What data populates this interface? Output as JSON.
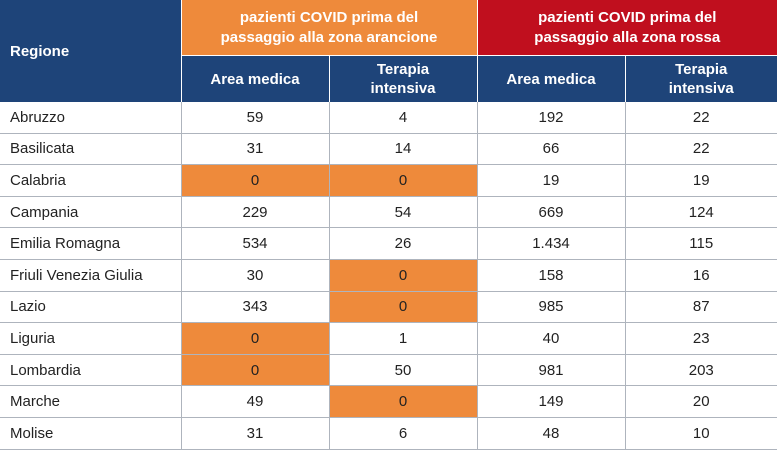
{
  "header": {
    "region": "Regione",
    "group_orange": [
      "pazienti COVID prima del",
      "passaggio alla zona arancione"
    ],
    "group_red": [
      "pazienti COVID prima del",
      "passaggio alla zona rossa"
    ],
    "sub": {
      "area_medica": "Area medica",
      "terapia": [
        "Terapia",
        "intensiva"
      ]
    }
  },
  "colors": {
    "header_blue": "#1e4479",
    "orange": "#ee8a3b",
    "red": "#c00f1e",
    "highlight": "#ee8a3b"
  },
  "rows": [
    {
      "region": "Abruzzo",
      "arancione_area": "59",
      "arancione_ti": "4",
      "rossa_area": "192",
      "rossa_ti": "22",
      "hl": []
    },
    {
      "region": "Basilicata",
      "arancione_area": "31",
      "arancione_ti": "14",
      "rossa_area": "66",
      "rossa_ti": "22",
      "hl": []
    },
    {
      "region": "Calabria",
      "arancione_area": "0",
      "arancione_ti": "0",
      "rossa_area": "19",
      "rossa_ti": "19",
      "hl": [
        "arancione_area",
        "arancione_ti"
      ]
    },
    {
      "region": "Campania",
      "arancione_area": "229",
      "arancione_ti": "54",
      "rossa_area": "669",
      "rossa_ti": "124",
      "hl": []
    },
    {
      "region": "Emilia Romagna",
      "arancione_area": "534",
      "arancione_ti": "26",
      "rossa_area": "1.434",
      "rossa_ti": "115",
      "hl": []
    },
    {
      "region": "Friuli Venezia Giulia",
      "arancione_area": "30",
      "arancione_ti": "0",
      "rossa_area": "158",
      "rossa_ti": "16",
      "hl": [
        "arancione_ti"
      ]
    },
    {
      "region": "Lazio",
      "arancione_area": "343",
      "arancione_ti": "0",
      "rossa_area": "985",
      "rossa_ti": "87",
      "hl": [
        "arancione_ti"
      ]
    },
    {
      "region": "Liguria",
      "arancione_area": "0",
      "arancione_ti": "1",
      "rossa_area": "40",
      "rossa_ti": "23",
      "hl": [
        "arancione_area"
      ]
    },
    {
      "region": "Lombardia",
      "arancione_area": "0",
      "arancione_ti": "50",
      "rossa_area": "981",
      "rossa_ti": "203",
      "hl": [
        "arancione_area"
      ]
    },
    {
      "region": "Marche",
      "arancione_area": "49",
      "arancione_ti": "0",
      "rossa_area": "149",
      "rossa_ti": "20",
      "hl": [
        "arancione_ti"
      ]
    },
    {
      "region": "Molise",
      "arancione_area": "31",
      "arancione_ti": "6",
      "rossa_area": "48",
      "rossa_ti": "10",
      "hl": []
    }
  ]
}
